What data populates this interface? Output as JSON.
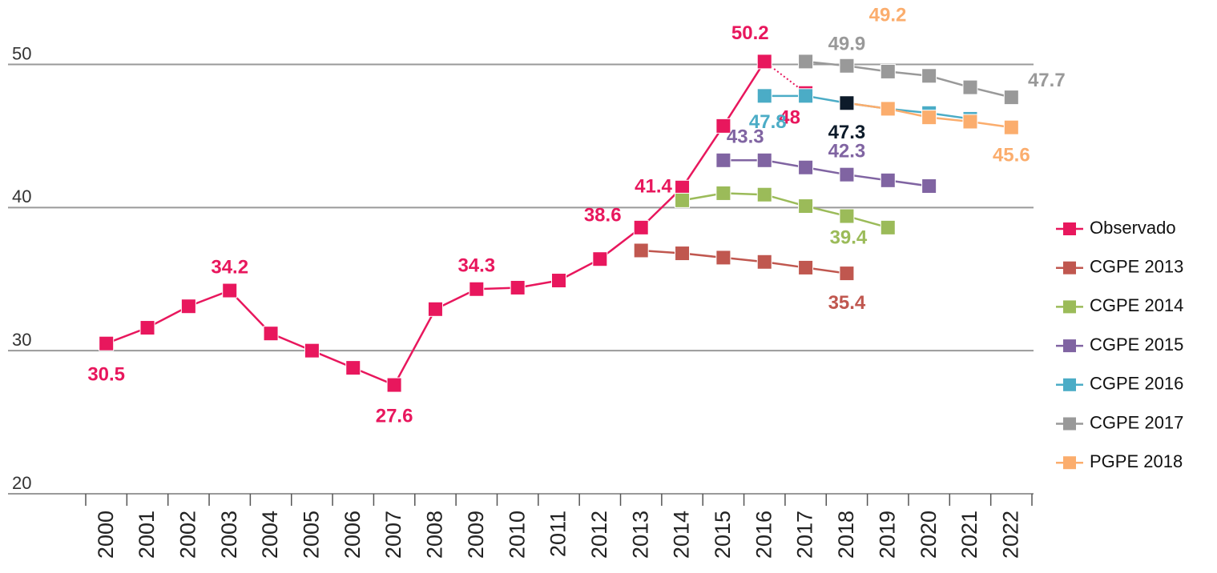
{
  "chart_data": {
    "type": "line",
    "categories": [
      "2000",
      "2001",
      "2002",
      "2003",
      "2004",
      "2005",
      "2006",
      "2007",
      "2008",
      "2009",
      "2010",
      "2011",
      "2012",
      "2013",
      "2014",
      "2015",
      "2016",
      "2017",
      "2018",
      "2019",
      "2020",
      "2021",
      "2022"
    ],
    "ylim": [
      20,
      54.5
    ],
    "yticks": [
      20,
      30,
      40,
      50
    ],
    "grid": true,
    "legend": "right",
    "series": [
      {
        "name": "Observado",
        "color": "#e8175d",
        "dotted_last_segment": true,
        "values": [
          30.5,
          31.6,
          33.1,
          34.2,
          31.2,
          30.0,
          28.8,
          27.6,
          32.9,
          34.3,
          34.4,
          34.9,
          36.4,
          38.6,
          41.4,
          45.7,
          50.2,
          48,
          null,
          null,
          null,
          null,
          null
        ],
        "value_labels": [
          "30.5",
          null,
          null,
          "34.2",
          null,
          null,
          null,
          "27.6",
          null,
          "34.3",
          null,
          null,
          null,
          "38.6",
          "41.4",
          null,
          "50.2",
          "48",
          null,
          null,
          null,
          null,
          null
        ]
      },
      {
        "name": "CGPE 2013",
        "color": "#c0574f",
        "values": [
          null,
          null,
          null,
          null,
          null,
          null,
          null,
          null,
          null,
          null,
          null,
          null,
          null,
          37.0,
          36.8,
          36.5,
          36.2,
          35.8,
          35.4,
          null,
          null,
          null,
          null
        ],
        "value_labels": [
          null,
          null,
          null,
          null,
          null,
          null,
          null,
          null,
          null,
          null,
          null,
          null,
          null,
          null,
          null,
          null,
          null,
          null,
          "35.4",
          null,
          null,
          null,
          null
        ]
      },
      {
        "name": "CGPE 2014",
        "color": "#9bbb59",
        "values": [
          null,
          null,
          null,
          null,
          null,
          null,
          null,
          null,
          null,
          null,
          null,
          null,
          null,
          null,
          40.5,
          41.0,
          40.9,
          40.1,
          39.4,
          38.6,
          null,
          null,
          null
        ],
        "value_labels": [
          null,
          null,
          null,
          null,
          null,
          null,
          null,
          null,
          null,
          null,
          null,
          null,
          null,
          null,
          null,
          null,
          null,
          null,
          "39.4",
          null,
          null,
          null,
          null
        ]
      },
      {
        "name": "CGPE 2015",
        "color": "#8064a2",
        "values": [
          null,
          null,
          null,
          null,
          null,
          null,
          null,
          null,
          null,
          null,
          null,
          null,
          null,
          null,
          null,
          43.3,
          43.3,
          42.8,
          42.3,
          41.9,
          41.5,
          null,
          null
        ],
        "value_labels": [
          null,
          null,
          null,
          null,
          null,
          null,
          null,
          null,
          null,
          null,
          null,
          null,
          null,
          null,
          null,
          null,
          "43.3",
          null,
          "42.3",
          null,
          null,
          null,
          null
        ]
      },
      {
        "name": "CGPE 2016",
        "color": "#4bacc6",
        "values": [
          null,
          null,
          null,
          null,
          null,
          null,
          null,
          null,
          null,
          null,
          null,
          null,
          null,
          null,
          null,
          null,
          47.8,
          47.8,
          47.3,
          46.9,
          46.6,
          46.2,
          null
        ],
        "value_labels": [
          null,
          null,
          null,
          null,
          null,
          null,
          null,
          null,
          null,
          null,
          null,
          null,
          null,
          null,
          null,
          null,
          "47.8",
          null,
          null,
          null,
          null,
          null,
          null
        ]
      },
      {
        "name": "CGPE 2017",
        "color": "#999999",
        "values": [
          null,
          null,
          null,
          null,
          null,
          null,
          null,
          null,
          null,
          null,
          null,
          null,
          null,
          null,
          null,
          null,
          null,
          50.2,
          49.9,
          49.5,
          49.2,
          48.4,
          47.7
        ],
        "value_labels": [
          null,
          null,
          null,
          null,
          null,
          null,
          null,
          null,
          null,
          null,
          null,
          null,
          null,
          null,
          null,
          null,
          null,
          null,
          "49.9",
          null,
          null,
          null,
          "47.7"
        ]
      },
      {
        "name": "PGPE 2018",
        "color": "#fbad6d",
        "highlight_first_color": "#0d1b2a",
        "values": [
          null,
          null,
          null,
          null,
          null,
          null,
          null,
          null,
          null,
          null,
          null,
          null,
          null,
          null,
          null,
          null,
          null,
          null,
          47.3,
          46.9,
          46.3,
          46.0,
          45.6
        ],
        "value_labels": [
          null,
          null,
          null,
          null,
          null,
          null,
          null,
          null,
          null,
          null,
          null,
          null,
          null,
          null,
          null,
          null,
          null,
          null,
          "47.3",
          null,
          null,
          null,
          "45.6"
        ]
      }
    ],
    "annotations": [
      {
        "text": "49.2",
        "color": "#fbad6d"
      }
    ]
  }
}
